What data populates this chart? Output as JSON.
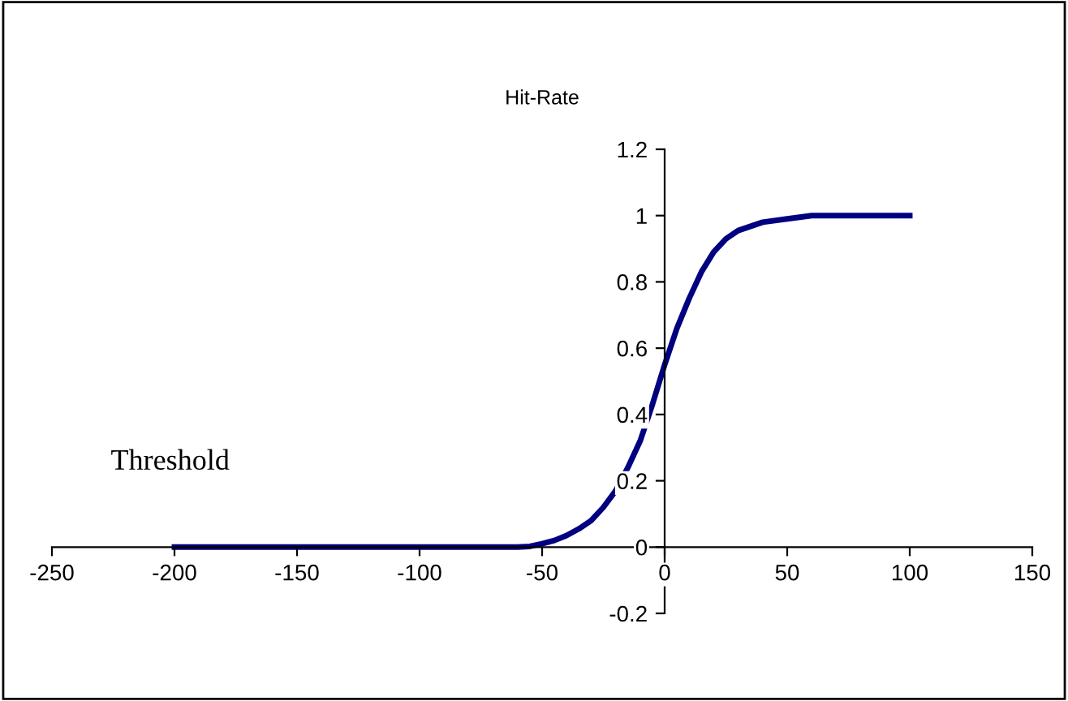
{
  "chart_data": {
    "type": "line",
    "title": "Hit-Rate",
    "annotations": [
      "Threshold"
    ],
    "xlim": [
      -250,
      150
    ],
    "xticks": [
      -250,
      -200,
      -150,
      -100,
      -50,
      0,
      50,
      100,
      150
    ],
    "ylim": [
      -0.2,
      1.2
    ],
    "yticks": [
      -0.2,
      0,
      0.2,
      0.4,
      0.6,
      0.8,
      1,
      1.2
    ],
    "grid": false,
    "legend": false,
    "marker": "none",
    "line_style": "solid",
    "series": [
      {
        "color": "#000080",
        "x": [
          -200,
          -150,
          -100,
          -60,
          -55,
          -50,
          -45,
          -40,
          -35,
          -30,
          -25,
          -20,
          -15,
          -10,
          -5,
          0,
          5,
          10,
          15,
          20,
          25,
          30,
          40,
          50,
          60,
          80,
          100
        ],
        "values": [
          0,
          0,
          0,
          0,
          0.002,
          0.01,
          0.02,
          0.035,
          0.055,
          0.08,
          0.12,
          0.17,
          0.24,
          0.32,
          0.43,
          0.55,
          0.66,
          0.75,
          0.83,
          0.89,
          0.93,
          0.955,
          0.98,
          0.99,
          1.0,
          1.0,
          1.0
        ]
      }
    ]
  }
}
